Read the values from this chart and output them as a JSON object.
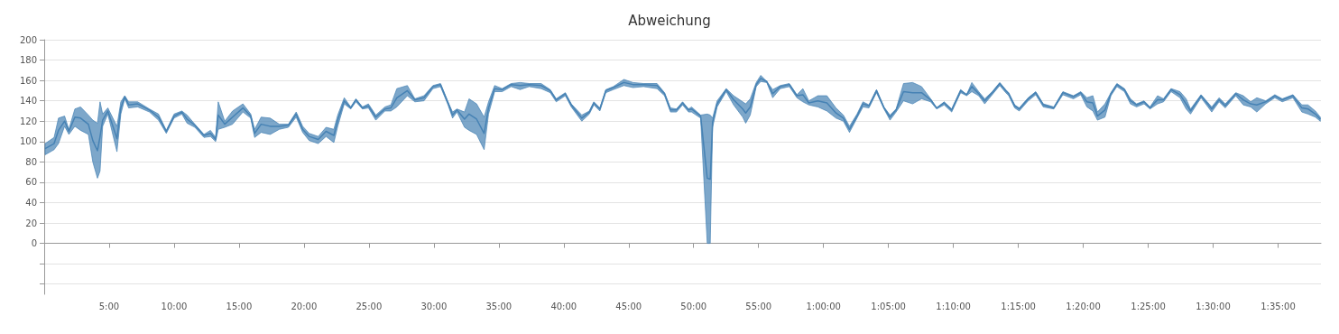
{
  "chart_data": {
    "type": "line",
    "title": "Abweichung",
    "xlim": [
      0,
      98.3
    ],
    "xticks": [
      {
        "value": 0,
        "label": null
      },
      {
        "value": 5,
        "label": "5:00"
      },
      {
        "value": 10,
        "label": "10:00"
      },
      {
        "value": 15,
        "label": "15:00"
      },
      {
        "value": 20,
        "label": "20:00"
      },
      {
        "value": 25,
        "label": "25:00"
      },
      {
        "value": 30,
        "label": "30:00"
      },
      {
        "value": 35,
        "label": "35:00"
      },
      {
        "value": 40,
        "label": "40:00"
      },
      {
        "value": 45,
        "label": "45:00"
      },
      {
        "value": 50,
        "label": "50:00"
      },
      {
        "value": 55,
        "label": "55:00"
      },
      {
        "value": 60,
        "label": "1:00:00"
      },
      {
        "value": 65,
        "label": "1:05:00"
      },
      {
        "value": 70,
        "label": "1:10:00"
      },
      {
        "value": 75,
        "label": "1:15:00"
      },
      {
        "value": 80,
        "label": "1:20:00"
      },
      {
        "value": 85,
        "label": "1:25:00"
      },
      {
        "value": 90,
        "label": "1:30:00"
      },
      {
        "value": 95,
        "label": "1:35:00"
      }
    ],
    "ylim": [
      -50,
      200
    ],
    "yticks": [
      {
        "value": -40,
        "label": null
      },
      {
        "value": -20,
        "label": null
      },
      0,
      20,
      40,
      60,
      80,
      100,
      120,
      140,
      160,
      180,
      200
    ],
    "grid": "y",
    "series": [
      {
        "color": "#4682b4",
        "values": [
          93,
          98,
          111,
          120,
          110,
          124,
          123,
          117,
          101,
          91,
          105,
          121,
          130,
          103,
          133,
          144,
          136,
          137,
          131,
          124,
          110,
          125,
          129,
          122,
          116,
          106,
          108,
          102,
          126,
          117,
          124,
          133,
          125,
          108,
          117,
          115,
          115,
          116,
          127,
          112,
          105,
          102,
          110,
          106,
          121,
          140,
          133,
          141,
          133,
          135,
          124,
          132,
          133,
          143,
          150,
          141,
          143,
          154,
          156,
          138,
          126,
          131,
          122,
          127,
          122,
          108,
          133,
          152,
          151,
          156,
          155,
          156,
          155,
          150,
          141,
          147,
          136,
          123,
          129,
          138,
          132,
          150,
          153,
          158,
          156,
          156,
          155,
          147,
          131,
          131,
          138,
          131,
          132,
          125,
          64,
          63,
          119,
          137,
          151,
          141,
          132,
          128,
          134,
          156,
          162,
          159,
          147,
          154,
          156,
          145,
          146,
          138,
          140,
          138,
          128,
          123,
          112,
          125,
          137,
          135,
          150,
          133,
          124,
          131,
          149,
          148,
          148,
          141,
          133,
          138,
          131,
          150,
          146,
          154,
          147,
          140,
          148,
          157,
          150,
          147,
          135,
          132,
          142,
          148,
          136,
          133,
          148,
          144,
          148,
          139,
          138,
          125,
          131,
          147,
          156,
          151,
          140,
          136,
          139,
          133,
          141,
          141,
          151,
          146,
          137,
          130,
          145,
          132,
          141,
          135,
          147,
          141,
          137,
          136,
          139,
          145,
          141,
          145,
          133,
          132,
          127,
          122
        ],
        "x": [
          0.07,
          0.76,
          1.1,
          1.57,
          1.9,
          2.36,
          2.8,
          3.4,
          3.74,
          4.1,
          4.3,
          4.5,
          4.9,
          5.6,
          5.9,
          6.2,
          6.5,
          7.2,
          8.1,
          8.8,
          9.4,
          10.0,
          10.6,
          11.0,
          11.6,
          12.3,
          12.8,
          13.2,
          13.4,
          13.9,
          14.5,
          15.3,
          15.9,
          16.2,
          16.7,
          17.4,
          18.1,
          18.8,
          19.4,
          19.9,
          20.4,
          21.1,
          21.7,
          22.3,
          22.6,
          23.1,
          23.6,
          24.0,
          24.5,
          24.96,
          25.53,
          26.23,
          26.69,
          27.15,
          27.96,
          28.54,
          29.24,
          29.93,
          30.51,
          31.09,
          31.44,
          31.78,
          32.36,
          32.71,
          33.29,
          33.87,
          34.21,
          34.68,
          35.26,
          35.95,
          36.64,
          37.34,
          38.26,
          38.96,
          39.42,
          40.12,
          40.58,
          41.39,
          41.97,
          42.32,
          42.78,
          43.24,
          43.82,
          44.63,
          45.33,
          46.14,
          47.18,
          47.76,
          48.22,
          48.68,
          49.15,
          49.61,
          49.84,
          50.54,
          51.05,
          51.28,
          51.46,
          51.81,
          52.51,
          53.08,
          53.78,
          54.01,
          54.36,
          54.82,
          55.17,
          55.63,
          56.09,
          56.67,
          57.37,
          57.95,
          58.41,
          58.87,
          59.57,
          60.26,
          60.96,
          61.53,
          62.0,
          62.58,
          63.04,
          63.5,
          64.08,
          64.66,
          65.12,
          65.59,
          66.16,
          66.86,
          67.55,
          68.25,
          68.71,
          69.29,
          69.87,
          70.56,
          71.02,
          71.42,
          71.95,
          72.41,
          72.99,
          73.57,
          74.03,
          74.26,
          74.72,
          75.07,
          75.76,
          76.34,
          76.92,
          77.73,
          78.43,
          79.24,
          79.81,
          80.28,
          80.74,
          81.09,
          81.67,
          82.13,
          82.59,
          83.17,
          83.63,
          84.1,
          84.68,
          85.14,
          85.72,
          86.18,
          86.76,
          87.45,
          87.92,
          88.26,
          89.07,
          89.89,
          90.46,
          90.93,
          91.74,
          92.32,
          92.89,
          93.36,
          94.05,
          94.75,
          95.32,
          96.14,
          96.83,
          97.3,
          97.87,
          98.25
        ],
        "upper": [
          98,
          104,
          123,
          125,
          112,
          132,
          134,
          126,
          121,
          118,
          139,
          127,
          133,
          115,
          139,
          145,
          139,
          139,
          132,
          127,
          111,
          127,
          130,
          126,
          117,
          107,
          111,
          104,
          139,
          120,
          130,
          137,
          127,
          112,
          124,
          123,
          117,
          117,
          129,
          115,
          108,
          105,
          114,
          112,
          126,
          143,
          134,
          142,
          134,
          137,
          126,
          134,
          136,
          152,
          155,
          142,
          145,
          155,
          157,
          139,
          129,
          132,
          129,
          142,
          137,
          124,
          139,
          155,
          152,
          157,
          158,
          157,
          157,
          151,
          142,
          148,
          137,
          126,
          130,
          139,
          133,
          151,
          154,
          161,
          158,
          157,
          157,
          148,
          133,
          132,
          139,
          132,
          134,
          126,
          127,
          126,
          123,
          140,
          152,
          145,
          139,
          137,
          142,
          158,
          165,
          159,
          151,
          155,
          157,
          146,
          152,
          140,
          145,
          145,
          133,
          126,
          115,
          127,
          139,
          136,
          151,
          134,
          126,
          132,
          157,
          158,
          154,
          142,
          133,
          139,
          132,
          151,
          146,
          158,
          149,
          142,
          149,
          158,
          151,
          148,
          136,
          133,
          143,
          149,
          137,
          134,
          149,
          145,
          149,
          143,
          145,
          129,
          137,
          148,
          157,
          152,
          142,
          137,
          140,
          134,
          145,
          142,
          152,
          149,
          142,
          132,
          146,
          134,
          143,
          137,
          148,
          145,
          139,
          143,
          140,
          146,
          142,
          146,
          136,
          136,
          130,
          124
        ],
        "lower": [
          87,
          92,
          98,
          115,
          107,
          115,
          111,
          107,
          80,
          64,
          71,
          115,
          127,
          90,
          127,
          142,
          133,
          134,
          129,
          121,
          108,
          123,
          127,
          118,
          114,
          104,
          105,
          100,
          112,
          114,
          117,
          129,
          123,
          104,
          109,
          107,
          112,
          114,
          124,
          109,
          101,
          98,
          105,
          99,
          115,
          137,
          132,
          139,
          132,
          133,
          121,
          130,
          130,
          134,
          145,
          139,
          140,
          152,
          154,
          136,
          123,
          129,
          114,
          111,
          107,
          92,
          127,
          149,
          149,
          154,
          151,
          154,
          152,
          148,
          139,
          145,
          134,
          120,
          127,
          136,
          130,
          148,
          151,
          155,
          153,
          154,
          152,
          145,
          129,
          129,
          136,
          129,
          129,
          123,
          0,
          0,
          114,
          134,
          149,
          136,
          124,
          118,
          126,
          154,
          159,
          158,
          143,
          152,
          154,
          143,
          139,
          136,
          134,
          130,
          123,
          120,
          109,
          123,
          134,
          133,
          148,
          132,
          121,
          129,
          140,
          137,
          142,
          139,
          132,
          136,
          129,
          148,
          145,
          149,
          145,
          137,
          146,
          155,
          148,
          145,
          133,
          130,
          140,
          146,
          134,
          132,
          146,
          142,
          146,
          134,
          130,
          121,
          124,
          145,
          154,
          149,
          137,
          134,
          137,
          132,
          137,
          139,
          149,
          143,
          132,
          127,
          143,
          129,
          139,
          133,
          145,
          136,
          134,
          129,
          137,
          143,
          139,
          143,
          129,
          127,
          124,
          120
        ]
      }
    ]
  }
}
